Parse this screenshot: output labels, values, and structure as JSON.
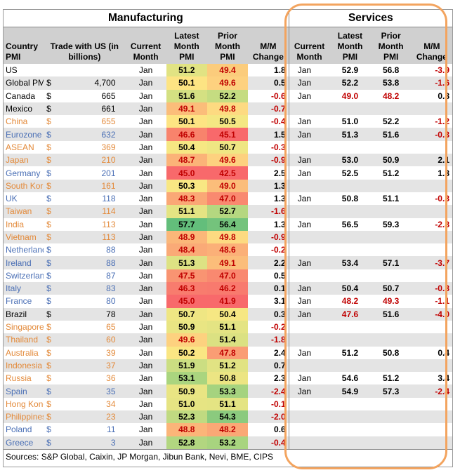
{
  "titles": {
    "manufacturing": "Manufacturing",
    "services": "Services"
  },
  "headers": {
    "country": "Country PMI",
    "trade": "Trade with US (in billions)",
    "current_month": "Current Month",
    "latest_pmi": "Latest Month PMI",
    "prior_pmi": "Prior Month PMI",
    "mm_change": "M/M Change",
    "svc_current_month": "Current Month",
    "svc_latest_pmi": "Latest Month PMI",
    "svc_prior_pmi": "Prior Month PMI",
    "svc_mm_change": "M/M Change"
  },
  "colors": {
    "outline": "#f3a45f",
    "name_orange": "#e38a3a",
    "name_blue": "#4a6fb5",
    "negative": "#c00000",
    "band": "#e4e4e4",
    "header_bg": "#d0d0d0"
  },
  "rows": [
    {
      "country": "US",
      "tone": "black",
      "dollar": "",
      "trade": "",
      "month": "Jan",
      "latest": "51.2",
      "prior": "49.4",
      "change": "1.8",
      "latest_bg": "#e1e383",
      "prior_bg": "#fbcc7c",
      "latest_red": false,
      "prior_red": true,
      "s_month": "Jan",
      "s_latest": "52.9",
      "s_prior": "56.8",
      "s_change": "-3.9",
      "s_latest_red": false,
      "s_prior_red": false
    },
    {
      "country": "Global PMI",
      "tone": "black",
      "dollar": "$",
      "trade": "4,700",
      "month": "Jan",
      "latest": "50.1",
      "prior": "49.6",
      "change": "0.5",
      "latest_bg": "#fde483",
      "prior_bg": "#fdd17f",
      "latest_red": false,
      "prior_red": true,
      "s_month": "Jan",
      "s_latest": "52.2",
      "s_prior": "53.8",
      "s_change": "-1.6",
      "s_latest_red": false,
      "s_prior_red": false
    },
    {
      "country": "Canada",
      "tone": "black",
      "dollar": "$",
      "trade": "665",
      "month": "Jan",
      "latest": "51.6",
      "prior": "52.2",
      "change": "-0.6",
      "latest_bg": "#d4e082",
      "prior_bg": "#c5dc81",
      "latest_red": false,
      "prior_red": false,
      "s_month": "Jan",
      "s_latest": "49.0",
      "s_prior": "48.2",
      "s_change": "0.8",
      "s_latest_red": true,
      "s_prior_red": true
    },
    {
      "country": "Mexico",
      "tone": "black",
      "dollar": "$",
      "trade": "661",
      "month": "Jan",
      "latest": "49.1",
      "prior": "49.8",
      "change": "-0.7",
      "latest_bg": "#fbbd7a",
      "prior_bg": "#fdda81",
      "latest_red": true,
      "prior_red": true,
      "s_month": "",
      "s_latest": "",
      "s_prior": "",
      "s_change": "",
      "s_latest_red": false,
      "s_prior_red": false
    },
    {
      "country": "China",
      "tone": "orange",
      "dollar": "$",
      "trade": "655",
      "month": "Jan",
      "latest": "50.1",
      "prior": "50.5",
      "change": "-0.4",
      "latest_bg": "#fde483",
      "prior_bg": "#f4e783",
      "latest_red": false,
      "prior_red": false,
      "s_month": "Jan",
      "s_latest": "51.0",
      "s_prior": "52.2",
      "s_change": "-1.2",
      "s_latest_red": false,
      "s_prior_red": false
    },
    {
      "country": "Eurozone PMI",
      "tone": "blue",
      "dollar": "$",
      "trade": "632",
      "month": "Jan",
      "latest": "46.6",
      "prior": "45.1",
      "change": "1.5",
      "latest_bg": "#f8836c",
      "prior_bg": "#f8696b",
      "latest_red": true,
      "prior_red": true,
      "s_month": "Jan",
      "s_latest": "51.3",
      "s_prior": "51.6",
      "s_change": "-0.3",
      "s_latest_red": false,
      "s_prior_red": false
    },
    {
      "country": "ASEAN",
      "tone": "orange",
      "dollar": "$",
      "trade": "369",
      "month": "Jan",
      "latest": "50.4",
      "prior": "50.7",
      "change": "-0.3",
      "latest_bg": "#f6e783",
      "prior_bg": "#efe683",
      "latest_red": false,
      "prior_red": false,
      "s_month": "",
      "s_latest": "",
      "s_prior": "",
      "s_change": "",
      "s_latest_red": false,
      "s_prior_red": false
    },
    {
      "country": "Japan",
      "tone": "orange",
      "dollar": "$",
      "trade": "210",
      "month": "Jan",
      "latest": "48.7",
      "prior": "49.6",
      "change": "-0.9",
      "latest_bg": "#fbb378",
      "prior_bg": "#fdd17f",
      "latest_red": true,
      "prior_red": true,
      "s_month": "Jan",
      "s_latest": "53.0",
      "s_prior": "50.9",
      "s_change": "2.1",
      "s_latest_red": false,
      "s_prior_red": false
    },
    {
      "country": "Germany",
      "tone": "blue",
      "dollar": "$",
      "trade": "201",
      "month": "Jan",
      "latest": "45.0",
      "prior": "42.5",
      "change": "2.5",
      "latest_bg": "#f8696b",
      "prior_bg": "#f8696b",
      "latest_red": true,
      "prior_red": true,
      "s_month": "Jan",
      "s_latest": "52.5",
      "s_prior": "51.2",
      "s_change": "1.3",
      "s_latest_red": false,
      "s_prior_red": false
    },
    {
      "country": "South Korea",
      "tone": "orange",
      "dollar": "$",
      "trade": "161",
      "month": "Jan",
      "latest": "50.3",
      "prior": "49.0",
      "change": "1.3",
      "latest_bg": "#f8e783",
      "prior_bg": "#fbbd7a",
      "latest_red": false,
      "prior_red": true,
      "s_month": "",
      "s_latest": "",
      "s_prior": "",
      "s_change": "",
      "s_latest_red": false,
      "s_prior_red": false
    },
    {
      "country": "UK",
      "tone": "blue",
      "dollar": "$",
      "trade": "118",
      "month": "Jan",
      "latest": "48.3",
      "prior": "47.0",
      "change": "1.3",
      "latest_bg": "#faa876",
      "prior_bg": "#f98970",
      "latest_red": true,
      "prior_red": true,
      "s_month": "Jan",
      "s_latest": "50.8",
      "s_prior": "51.1",
      "s_change": "-0.3",
      "s_latest_red": false,
      "s_prior_red": false
    },
    {
      "country": "Taiwan",
      "tone": "orange",
      "dollar": "$",
      "trade": "114",
      "month": "Jan",
      "latest": "51.1",
      "prior": "52.7",
      "change": "-1.6",
      "latest_bg": "#e4e483",
      "prior_bg": "#b5d780",
      "latest_red": false,
      "prior_red": false,
      "s_month": "",
      "s_latest": "",
      "s_prior": "",
      "s_change": "",
      "s_latest_red": false,
      "s_prior_red": false
    },
    {
      "country": "India",
      "tone": "orange",
      "dollar": "$",
      "trade": "113",
      "month": "Jan",
      "latest": "57.7",
      "prior": "56.4",
      "change": "1.3",
      "latest_bg": "#63be7b",
      "prior_bg": "#74c37c",
      "latest_red": false,
      "prior_red": false,
      "s_month": "Jan",
      "s_latest": "56.5",
      "s_prior": "59.3",
      "s_change": "-2.8",
      "s_latest_red": false,
      "s_prior_red": false
    },
    {
      "country": "Vietnam",
      "tone": "orange",
      "dollar": "$",
      "trade": "113",
      "month": "Jan",
      "latest": "48.9",
      "prior": "49.8",
      "change": "-0.9",
      "latest_bg": "#fbb779",
      "prior_bg": "#fdda81",
      "latest_red": true,
      "prior_red": true,
      "s_month": "",
      "s_latest": "",
      "s_prior": "",
      "s_change": "",
      "s_latest_red": false,
      "s_prior_red": false
    },
    {
      "country": "Netherlands",
      "tone": "blue",
      "dollar": "$",
      "trade": "88",
      "month": "Jan",
      "latest": "48.4",
      "prior": "48.6",
      "change": "-0.2",
      "latest_bg": "#faaa77",
      "prior_bg": "#fbb078",
      "latest_red": true,
      "prior_red": true,
      "s_month": "",
      "s_latest": "",
      "s_prior": "",
      "s_change": "",
      "s_latest_red": false,
      "s_prior_red": false
    },
    {
      "country": "Ireland",
      "tone": "blue",
      "dollar": "$",
      "trade": "88",
      "month": "Jan",
      "latest": "51.3",
      "prior": "49.1",
      "change": "2.2",
      "latest_bg": "#dde283",
      "prior_bg": "#fbbd7a",
      "latest_red": false,
      "prior_red": true,
      "s_month": "Jan",
      "s_latest": "53.4",
      "s_prior": "57.1",
      "s_change": "-3.7",
      "s_latest_red": false,
      "s_prior_red": false
    },
    {
      "country": "Switzerland",
      "tone": "blue",
      "dollar": "$",
      "trade": "87",
      "month": "Jan",
      "latest": "47.5",
      "prior": "47.0",
      "change": "0.5",
      "latest_bg": "#f99472",
      "prior_bg": "#f98970",
      "latest_red": true,
      "prior_red": true,
      "s_month": "",
      "s_latest": "",
      "s_prior": "",
      "s_change": "",
      "s_latest_red": false,
      "s_prior_red": false
    },
    {
      "country": "Italy",
      "tone": "blue",
      "dollar": "$",
      "trade": "83",
      "month": "Jan",
      "latest": "46.3",
      "prior": "46.2",
      "change": "0.1",
      "latest_bg": "#f87c6e",
      "prior_bg": "#f87a6e",
      "latest_red": true,
      "prior_red": true,
      "s_month": "Jan",
      "s_latest": "50.4",
      "s_prior": "50.7",
      "s_change": "-0.3",
      "s_latest_red": false,
      "s_prior_red": false
    },
    {
      "country": "France",
      "tone": "blue",
      "dollar": "$",
      "trade": "80",
      "month": "Jan",
      "latest": "45.0",
      "prior": "41.9",
      "change": "3.1",
      "latest_bg": "#f8696b",
      "prior_bg": "#f8696b",
      "latest_red": true,
      "prior_red": true,
      "s_month": "Jan",
      "s_latest": "48.2",
      "s_prior": "49.3",
      "s_change": "-1.1",
      "s_latest_red": true,
      "s_prior_red": true
    },
    {
      "country": "Brazil",
      "tone": "black",
      "dollar": "$",
      "trade": "78",
      "month": "Jan",
      "latest": "50.7",
      "prior": "50.4",
      "change": "0.3",
      "latest_bg": "#efe683",
      "prior_bg": "#f6e783",
      "latest_red": false,
      "prior_red": false,
      "s_month": "Jan",
      "s_latest": "47.6",
      "s_prior": "51.6",
      "s_change": "-4.0",
      "s_latest_red": true,
      "s_prior_red": false
    },
    {
      "country": "Singapore",
      "tone": "orange",
      "dollar": "$",
      "trade": "65",
      "month": "Jan",
      "latest": "50.9",
      "prior": "51.1",
      "change": "-0.2",
      "latest_bg": "#e9e583",
      "prior_bg": "#e4e483",
      "latest_red": false,
      "prior_red": false,
      "s_month": "",
      "s_latest": "",
      "s_prior": "",
      "s_change": "",
      "s_latest_red": false,
      "s_prior_red": false
    },
    {
      "country": "Thailand",
      "tone": "orange",
      "dollar": "$",
      "trade": "60",
      "month": "Jan",
      "latest": "49.6",
      "prior": "51.4",
      "change": "-1.8",
      "latest_bg": "#fdd17f",
      "prior_bg": "#dbe182",
      "latest_red": true,
      "prior_red": false,
      "s_month": "",
      "s_latest": "",
      "s_prior": "",
      "s_change": "",
      "s_latest_red": false,
      "s_prior_red": false
    },
    {
      "country": "Australia",
      "tone": "orange",
      "dollar": "$",
      "trade": "39",
      "month": "Jan",
      "latest": "50.2",
      "prior": "47.8",
      "change": "2.4",
      "latest_bg": "#fae683",
      "prior_bg": "#fa9d74",
      "latest_red": false,
      "prior_red": true,
      "s_month": "Jan",
      "s_latest": "51.2",
      "s_prior": "50.8",
      "s_change": "0.4",
      "s_latest_red": false,
      "s_prior_red": false
    },
    {
      "country": "Indonesia",
      "tone": "orange",
      "dollar": "$",
      "trade": "37",
      "month": "Jan",
      "latest": "51.9",
      "prior": "51.2",
      "change": "0.7",
      "latest_bg": "#cbde82",
      "prior_bg": "#e1e383",
      "latest_red": false,
      "prior_red": false,
      "s_month": "",
      "s_latest": "",
      "s_prior": "",
      "s_change": "",
      "s_latest_red": false,
      "s_prior_red": false
    },
    {
      "country": "Russia",
      "tone": "orange",
      "dollar": "$",
      "trade": "36",
      "month": "Jan",
      "latest": "53.1",
      "prior": "50.8",
      "change": "2.3",
      "latest_bg": "#aad57f",
      "prior_bg": "#ece583",
      "latest_red": false,
      "prior_red": false,
      "s_month": "Jan",
      "s_latest": "54.6",
      "s_prior": "51.2",
      "s_change": "3.4",
      "s_latest_red": false,
      "s_prior_red": false
    },
    {
      "country": "Spain",
      "tone": "blue",
      "dollar": "$",
      "trade": "35",
      "month": "Jan",
      "latest": "50.9",
      "prior": "53.3",
      "change": "-2.4",
      "latest_bg": "#e9e583",
      "prior_bg": "#a5d37f",
      "latest_red": false,
      "prior_red": false,
      "s_month": "Jan",
      "s_latest": "54.9",
      "s_prior": "57.3",
      "s_change": "-2.4",
      "s_latest_red": false,
      "s_prior_red": false
    },
    {
      "country": "Hong Kong",
      "tone": "orange",
      "dollar": "$",
      "trade": "34",
      "month": "Jan",
      "latest": "51.0",
      "prior": "51.1",
      "change": "-0.1",
      "latest_bg": "#e6e483",
      "prior_bg": "#e4e483",
      "latest_red": false,
      "prior_red": false,
      "s_month": "",
      "s_latest": "",
      "s_prior": "",
      "s_change": "",
      "s_latest_red": false,
      "s_prior_red": false
    },
    {
      "country": "Philippines",
      "tone": "orange",
      "dollar": "$",
      "trade": "23",
      "month": "Jan",
      "latest": "52.3",
      "prior": "54.3",
      "change": "-2.0",
      "latest_bg": "#c0da81",
      "prior_bg": "#8bca7e",
      "latest_red": false,
      "prior_red": false,
      "s_month": "",
      "s_latest": "",
      "s_prior": "",
      "s_change": "",
      "s_latest_red": false,
      "s_prior_red": false
    },
    {
      "country": "Poland",
      "tone": "blue",
      "dollar": "$",
      "trade": "11",
      "month": "Jan",
      "latest": "48.8",
      "prior": "48.2",
      "change": "0.6",
      "latest_bg": "#fbb579",
      "prior_bg": "#faa876",
      "latest_red": true,
      "prior_red": true,
      "s_month": "",
      "s_latest": "",
      "s_prior": "",
      "s_change": "",
      "s_latest_red": false,
      "s_prior_red": false
    },
    {
      "country": "Greece",
      "tone": "blue",
      "dollar": "$",
      "trade": "3",
      "month": "Jan",
      "latest": "52.8",
      "prior": "53.2",
      "change": "-0.4",
      "latest_bg": "#b2d680",
      "prior_bg": "#a8d47f",
      "latest_red": false,
      "prior_red": false,
      "s_month": "",
      "s_latest": "",
      "s_prior": "",
      "s_change": "",
      "s_latest_red": false,
      "s_prior_red": false
    }
  ],
  "source": "Sources: S&P Global, Caixin, JP Morgan, Jibun Bank, Nevi, BME, CIPS"
}
